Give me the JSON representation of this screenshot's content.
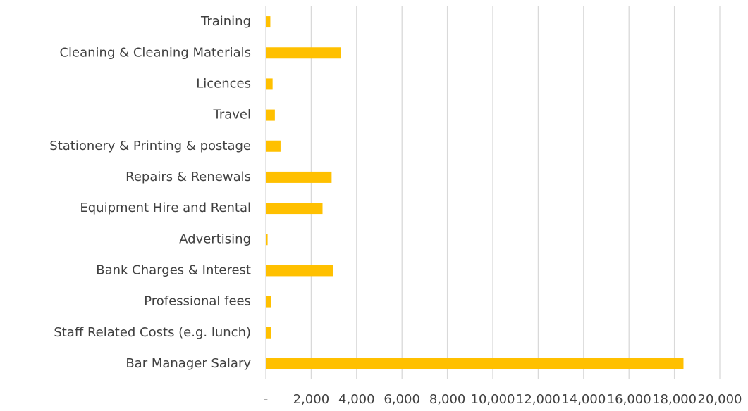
{
  "chart_data": {
    "type": "bar",
    "orientation": "horizontal",
    "categories": [
      "Training",
      "Cleaning & Cleaning Materials",
      "Licences",
      "Travel",
      "Stationery & Printing & postage",
      "Repairs & Renewals",
      "Equipment Hire and Rental",
      "Advertising",
      "Bank Charges & Interest",
      "Professional fees",
      "Staff Related Costs (e.g. lunch)",
      "Bar Manager Salary"
    ],
    "values": [
      200,
      3300,
      300,
      400,
      650,
      2900,
      2500,
      80,
      2950,
      220,
      220,
      18400
    ],
    "color": "#ffc000",
    "xlim": [
      0,
      20000
    ],
    "xticks": [
      {
        "value": 0,
        "label": "-"
      },
      {
        "value": 2000,
        "label": "2,000"
      },
      {
        "value": 4000,
        "label": "4,000"
      },
      {
        "value": 6000,
        "label": "6,000"
      },
      {
        "value": 8000,
        "label": "8,000"
      },
      {
        "value": 10000,
        "label": "10,000"
      },
      {
        "value": 12000,
        "label": "12,000"
      },
      {
        "value": 14000,
        "label": "14,000"
      },
      {
        "value": 16000,
        "label": "16,000"
      },
      {
        "value": 18000,
        "label": "18,000"
      },
      {
        "value": 20000,
        "label": "20,000"
      }
    ],
    "grid": true
  }
}
